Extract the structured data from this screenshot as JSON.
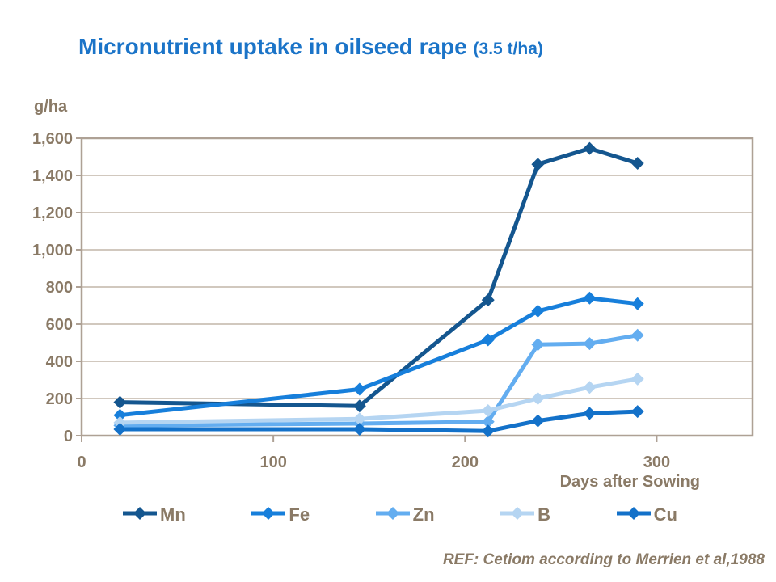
{
  "title": {
    "main": "Micronutrient uptake in oilseed rape ",
    "suffix": "(3.5 t/ha)"
  },
  "footer": "REF: Cetiom according to Merrien et al,1988",
  "colors": {
    "title_blue": "#1B74C8",
    "axis_text": "#8A7A66",
    "gridline": "#C2B6A9",
    "plot_border": "#AEA195"
  },
  "chart_data": {
    "type": "line",
    "marker": "diamond",
    "grid": true,
    "legend_position": "bottom",
    "ylabel": "g/ha",
    "xlabel": "Days after Sowing",
    "xlim": [
      0,
      350
    ],
    "ylim": [
      0,
      1600
    ],
    "x_ticks": [
      0,
      100,
      200,
      300
    ],
    "x_tick_labels": [
      "0",
      "100",
      "200",
      "300"
    ],
    "y_ticks": [
      0,
      200,
      400,
      600,
      800,
      1000,
      1200,
      1400,
      1600
    ],
    "y_tick_labels": [
      "0",
      "200",
      "400",
      "600",
      "800",
      "1,000",
      "1,200",
      "1,400",
      "1,600"
    ],
    "x": [
      20,
      145,
      212,
      238,
      265,
      290
    ],
    "series": [
      {
        "name": "Mn",
        "color": "#14568F",
        "values": [
          180,
          160,
          730,
          1460,
          1545,
          1465
        ]
      },
      {
        "name": "Fe",
        "color": "#177FDB",
        "values": [
          110,
          250,
          515,
          670,
          740,
          710
        ]
      },
      {
        "name": "Zn",
        "color": "#63ADF0",
        "values": [
          55,
          65,
          75,
          490,
          495,
          540
        ]
      },
      {
        "name": "B",
        "color": "#B5D5F2",
        "values": [
          70,
          90,
          135,
          200,
          260,
          305
        ]
      },
      {
        "name": "Cu",
        "color": "#1371C9",
        "values": [
          35,
          35,
          25,
          80,
          120,
          130
        ]
      }
    ]
  }
}
